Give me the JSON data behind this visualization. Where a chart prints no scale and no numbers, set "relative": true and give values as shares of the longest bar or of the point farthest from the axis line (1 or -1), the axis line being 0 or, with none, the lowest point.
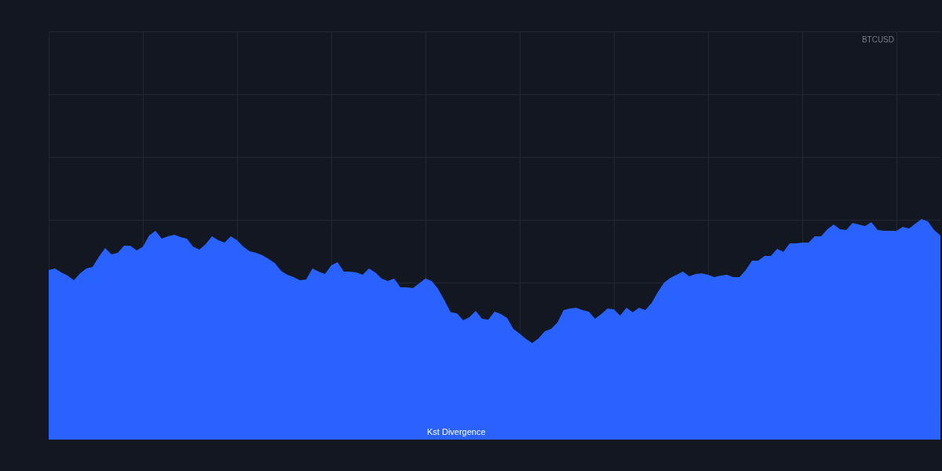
{
  "chart_data": {
    "type": "area",
    "title": "BTCUSD",
    "annotations": [
      "Kst Divergence"
    ],
    "relative": true,
    "grid": true,
    "color": "#2962ff",
    "categories": [
      null,
      null,
      null,
      null,
      null,
      null,
      null,
      null,
      null,
      null,
      null,
      null,
      null,
      null,
      null,
      null,
      null,
      null,
      null,
      null,
      null,
      null,
      null,
      null,
      null,
      null,
      null,
      null,
      null,
      null,
      null,
      null,
      null,
      null,
      null,
      null,
      null,
      null,
      null,
      null,
      null,
      null,
      null,
      null,
      null,
      null,
      null,
      null,
      null,
      null,
      null,
      null,
      null,
      null,
      null,
      null,
      null,
      null,
      null,
      null,
      null,
      null,
      null,
      null,
      null,
      null,
      null,
      null,
      null,
      null,
      null,
      null,
      null,
      null,
      null,
      null,
      null,
      null,
      null,
      null,
      null,
      null,
      null,
      null,
      null,
      null,
      null,
      null,
      null,
      null,
      null,
      null,
      null,
      null,
      null,
      null,
      null,
      null,
      null,
      null,
      null,
      null,
      null,
      null,
      null,
      null,
      null,
      null,
      null,
      null,
      null,
      null,
      null,
      null,
      null,
      null,
      null,
      null,
      null,
      null,
      null,
      null,
      null,
      null,
      null,
      null,
      null,
      null,
      null,
      null,
      null,
      null,
      null,
      null,
      null,
      null,
      null,
      null,
      null,
      null,
      null,
      null,
      null
    ],
    "values": [
      0.769,
      0.776,
      0.758,
      0.744,
      0.722,
      0.754,
      0.776,
      0.783,
      0.829,
      0.868,
      0.84,
      0.847,
      0.879,
      0.879,
      0.858,
      0.875,
      0.925,
      0.947,
      0.911,
      0.922,
      0.929,
      0.918,
      0.911,
      0.875,
      0.861,
      0.886,
      0.922,
      0.904,
      0.893,
      0.922,
      0.904,
      0.875,
      0.854,
      0.847,
      0.836,
      0.819,
      0.801,
      0.765,
      0.747,
      0.737,
      0.722,
      0.726,
      0.776,
      0.762,
      0.751,
      0.79,
      0.804,
      0.762,
      0.762,
      0.758,
      0.747,
      0.776,
      0.758,
      0.73,
      0.719,
      0.73,
      0.69,
      0.69,
      0.687,
      0.708,
      0.73,
      0.719,
      0.683,
      0.633,
      0.577,
      0.573,
      0.541,
      0.555,
      0.584,
      0.548,
      0.544,
      0.58,
      0.569,
      0.552,
      0.502,
      0.48,
      0.456,
      0.438,
      0.459,
      0.491,
      0.502,
      0.53,
      0.587,
      0.594,
      0.598,
      0.587,
      0.58,
      0.548,
      0.569,
      0.594,
      0.591,
      0.562,
      0.598,
      0.577,
      0.598,
      0.587,
      0.619,
      0.669,
      0.712,
      0.733,
      0.747,
      0.762,
      0.74,
      0.751,
      0.754,
      0.747,
      0.737,
      0.744,
      0.747,
      0.737,
      0.737,
      0.769,
      0.811,
      0.811,
      0.833,
      0.833,
      0.865,
      0.851,
      0.89,
      0.89,
      0.893,
      0.893,
      0.922,
      0.922,
      0.954,
      0.975,
      0.954,
      0.95,
      0.982,
      0.975,
      0.968,
      0.986,
      0.95,
      0.947,
      0.947,
      0.947,
      0.964,
      0.957,
      0.979,
      1,
      0.989,
      0.95,
      0.925
    ]
  }
}
